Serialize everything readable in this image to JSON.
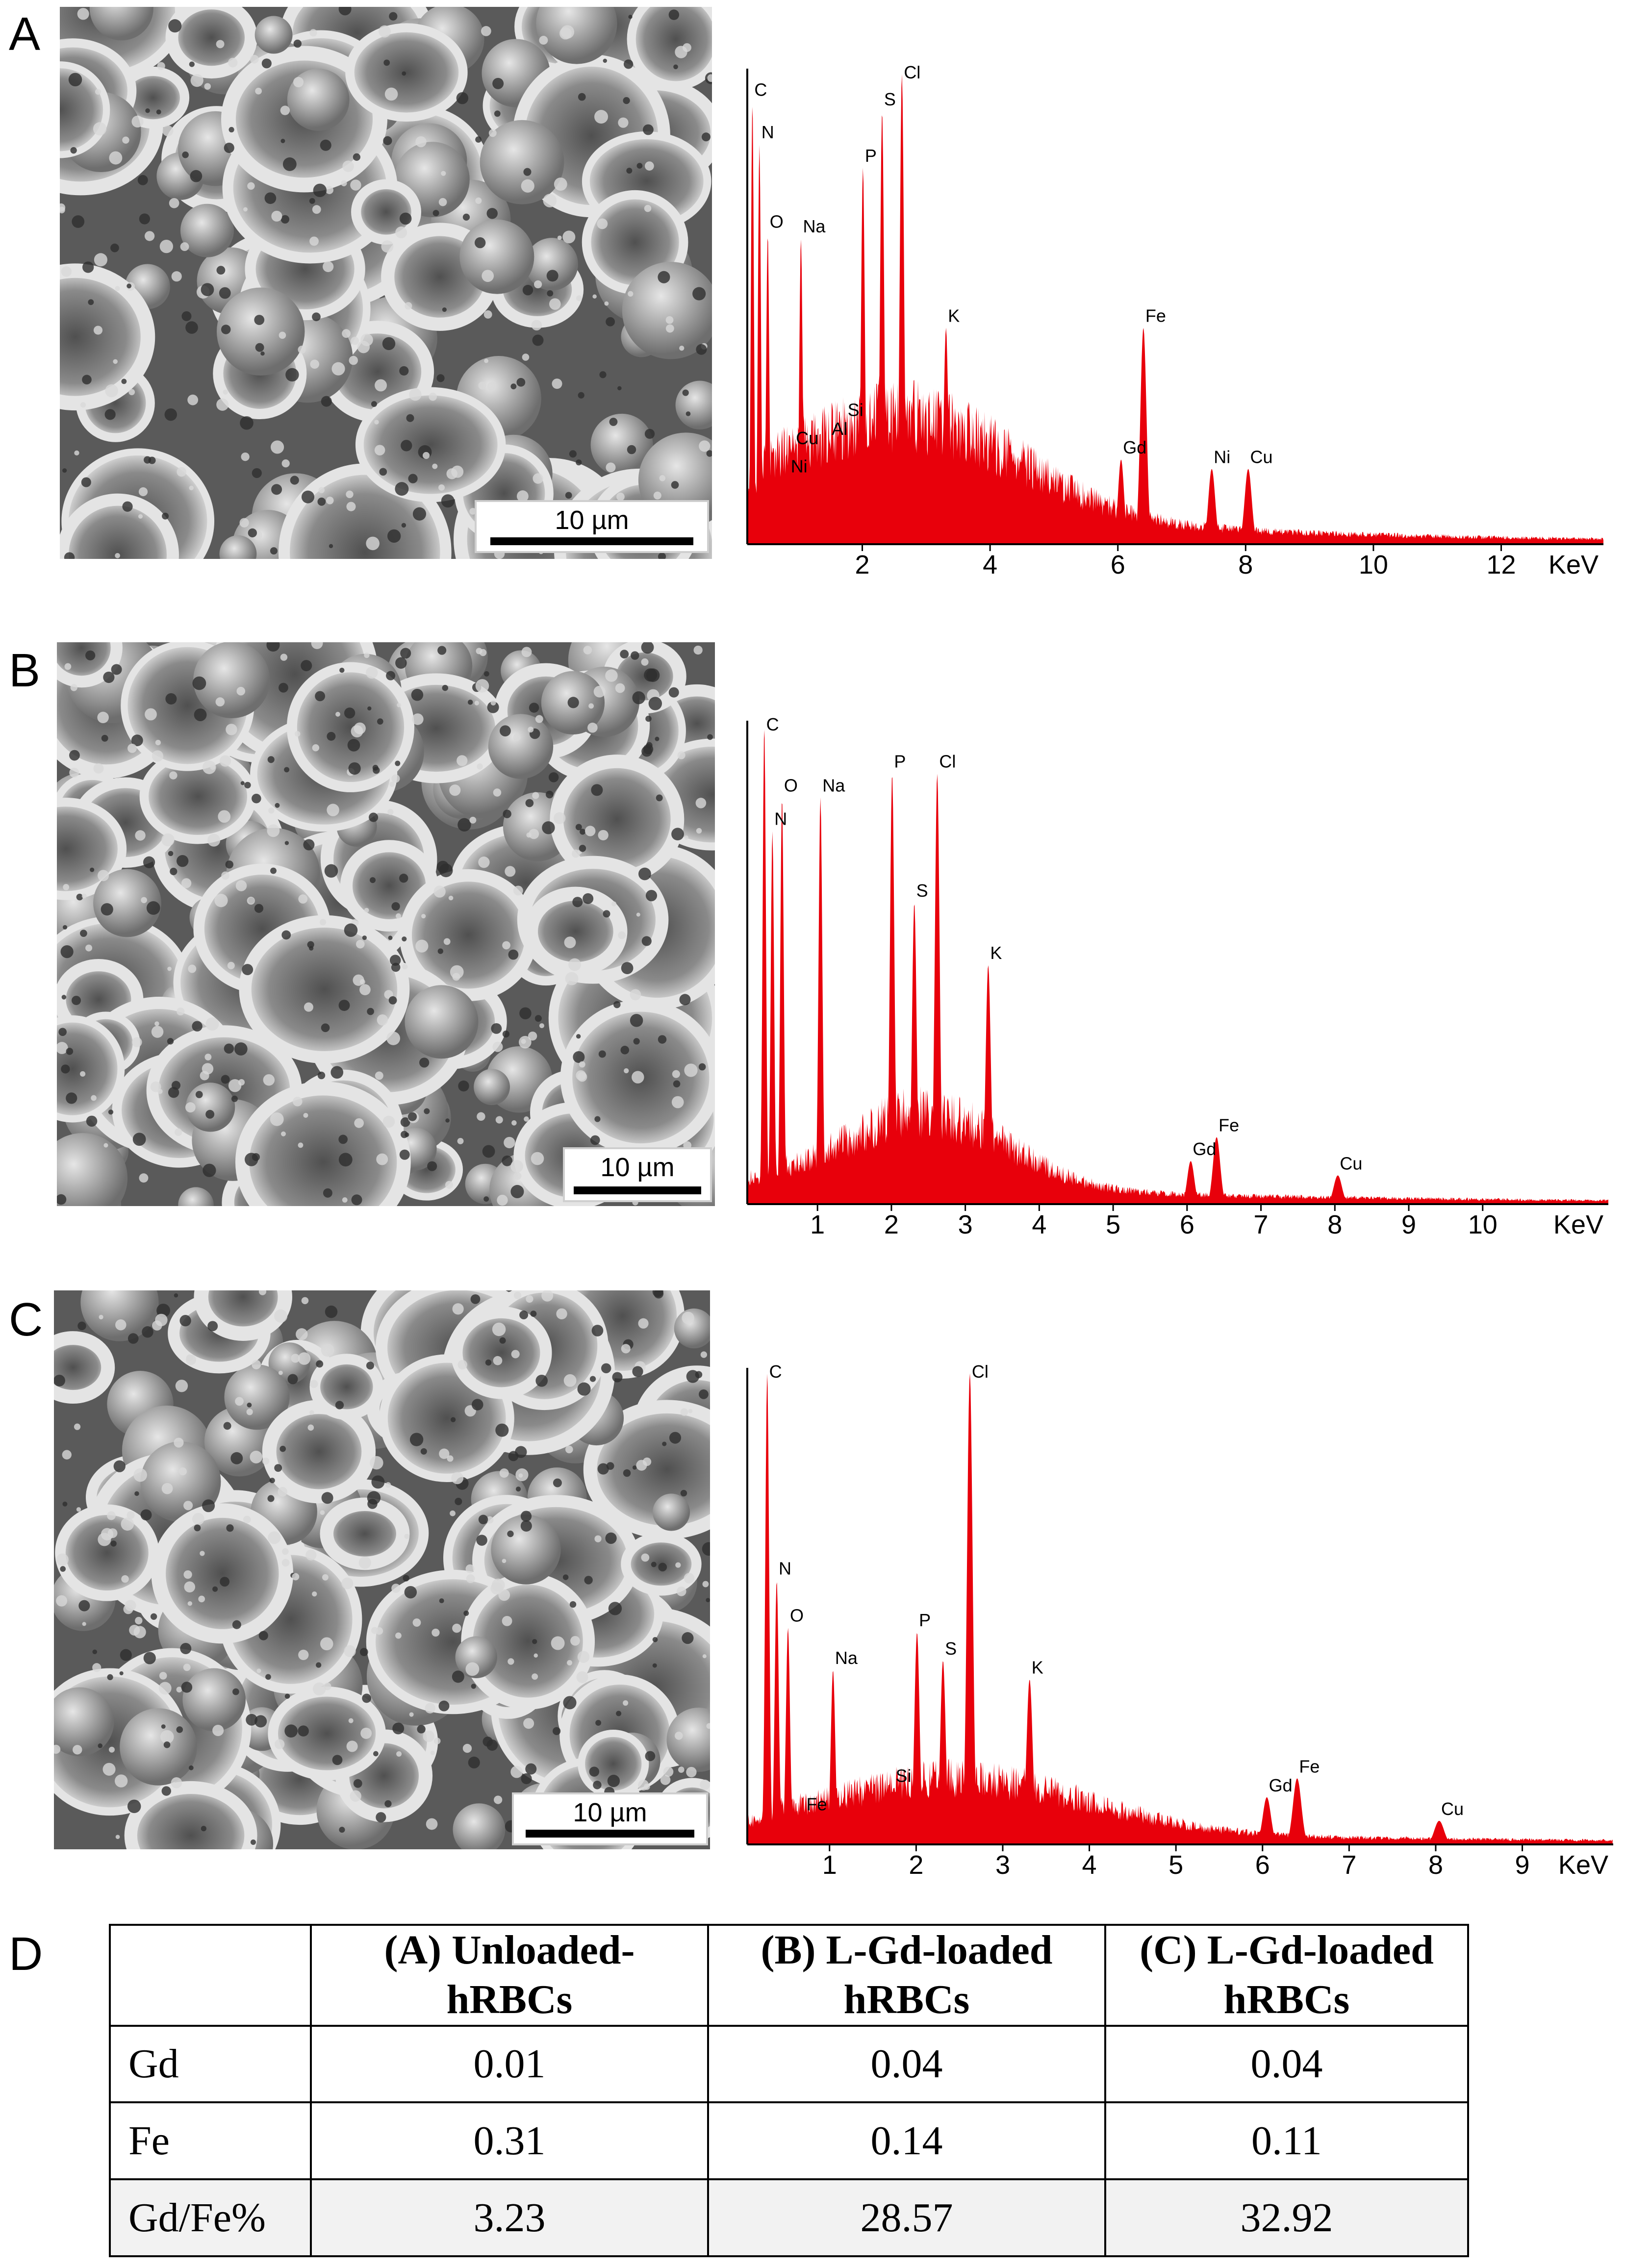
{
  "panels": {
    "a": {
      "letter": "A",
      "scale_label": "10 µm"
    },
    "b": {
      "letter": "B",
      "scale_label": "10 µm"
    },
    "c": {
      "letter": "C",
      "scale_label": "10 µm"
    },
    "d": {
      "letter": "D"
    }
  },
  "colors": {
    "spectrum_fill": "#e8000b",
    "axis": "#000000",
    "table_highlight": "#f2f2f2"
  },
  "chart_data": [
    {
      "type": "area",
      "panel": "A",
      "xlabel": "KeV",
      "xticks": [
        2,
        4,
        6,
        8,
        10,
        12
      ],
      "xlim": [
        0.2,
        13.6
      ],
      "ylim": [
        0,
        100
      ],
      "peaks": [
        {
          "label": "C",
          "x": 0.28,
          "y": 94
        },
        {
          "label": "N",
          "x": 0.39,
          "y": 85
        },
        {
          "label": "O",
          "x": 0.52,
          "y": 66
        },
        {
          "label": "Na",
          "x": 1.04,
          "y": 65
        },
        {
          "label": "Cu",
          "x": 0.93,
          "y": 20
        },
        {
          "label": "Ni",
          "x": 0.85,
          "y": 14
        },
        {
          "label": "Al",
          "x": 1.49,
          "y": 22
        },
        {
          "label": "Si",
          "x": 1.74,
          "y": 26
        },
        {
          "label": "P",
          "x": 2.01,
          "y": 80
        },
        {
          "label": "S",
          "x": 2.31,
          "y": 92
        },
        {
          "label": "Cl",
          "x": 2.62,
          "y": 100
        },
        {
          "label": "K",
          "x": 3.31,
          "y": 46
        },
        {
          "label": "Gd",
          "x": 6.05,
          "y": 18
        },
        {
          "label": "Fe",
          "x": 6.4,
          "y": 46
        },
        {
          "label": "Ni",
          "x": 7.47,
          "y": 16
        },
        {
          "label": "Cu",
          "x": 8.04,
          "y": 16
        }
      ]
    },
    {
      "type": "area",
      "panel": "B",
      "xlabel": "KeV",
      "xticks": [
        1,
        2,
        3,
        4,
        5,
        6,
        7,
        8,
        9,
        10
      ],
      "xlim": [
        0.05,
        11.7
      ],
      "ylim": [
        0,
        100
      ],
      "peaks": [
        {
          "label": "C",
          "x": 0.28,
          "y": 100
        },
        {
          "label": "N",
          "x": 0.39,
          "y": 78
        },
        {
          "label": "O",
          "x": 0.52,
          "y": 85
        },
        {
          "label": "Na",
          "x": 1.04,
          "y": 85
        },
        {
          "label": "P",
          "x": 2.01,
          "y": 90
        },
        {
          "label": "S",
          "x": 2.31,
          "y": 63
        },
        {
          "label": "Cl",
          "x": 2.62,
          "y": 90
        },
        {
          "label": "K",
          "x": 3.31,
          "y": 50
        },
        {
          "label": "Gd",
          "x": 6.05,
          "y": 9
        },
        {
          "label": "Fe",
          "x": 6.4,
          "y": 14
        },
        {
          "label": "Cu",
          "x": 8.04,
          "y": 6
        }
      ]
    },
    {
      "type": "area",
      "panel": "C",
      "xlabel": "KeV",
      "xticks": [
        1,
        2,
        3,
        4,
        5,
        6,
        7,
        8,
        9
      ],
      "xlim": [
        0.05,
        10.05
      ],
      "ylim": [
        0,
        100
      ],
      "peaks": [
        {
          "label": "C",
          "x": 0.28,
          "y": 100
        },
        {
          "label": "N",
          "x": 0.39,
          "y": 56
        },
        {
          "label": "O",
          "x": 0.52,
          "y": 46
        },
        {
          "label": "Fe",
          "x": 0.71,
          "y": 6
        },
        {
          "label": "Na",
          "x": 1.04,
          "y": 37
        },
        {
          "label": "Si",
          "x": 1.74,
          "y": 12
        },
        {
          "label": "P",
          "x": 2.01,
          "y": 45
        },
        {
          "label": "S",
          "x": 2.31,
          "y": 39
        },
        {
          "label": "Cl",
          "x": 2.62,
          "y": 100
        },
        {
          "label": "K",
          "x": 3.31,
          "y": 35
        },
        {
          "label": "Gd",
          "x": 6.05,
          "y": 10
        },
        {
          "label": "Fe",
          "x": 6.4,
          "y": 14
        },
        {
          "label": "Cu",
          "x": 8.04,
          "y": 5
        }
      ]
    },
    {
      "type": "table",
      "panel": "D",
      "columns": [
        "",
        "(A) Unloaded-hRBCs",
        "(B) L-Gd-loaded hRBCs",
        "(C) L-Gd-loaded hRBCs"
      ],
      "header_lines": [
        [
          "(A) Unloaded-",
          "hRBCs"
        ],
        [
          "(B) L-Gd-loaded",
          "hRBCs"
        ],
        [
          "(C) L-Gd-loaded",
          "hRBCs"
        ]
      ],
      "rows": [
        {
          "label": "Gd",
          "values": [
            "0.01",
            "0.04",
            "0.04"
          ]
        },
        {
          "label": "Fe",
          "values": [
            "0.31",
            "0.14",
            "0.11"
          ]
        },
        {
          "label": "Gd/Fe%",
          "values": [
            "3.23",
            "28.57",
            "32.92"
          ]
        }
      ]
    }
  ]
}
